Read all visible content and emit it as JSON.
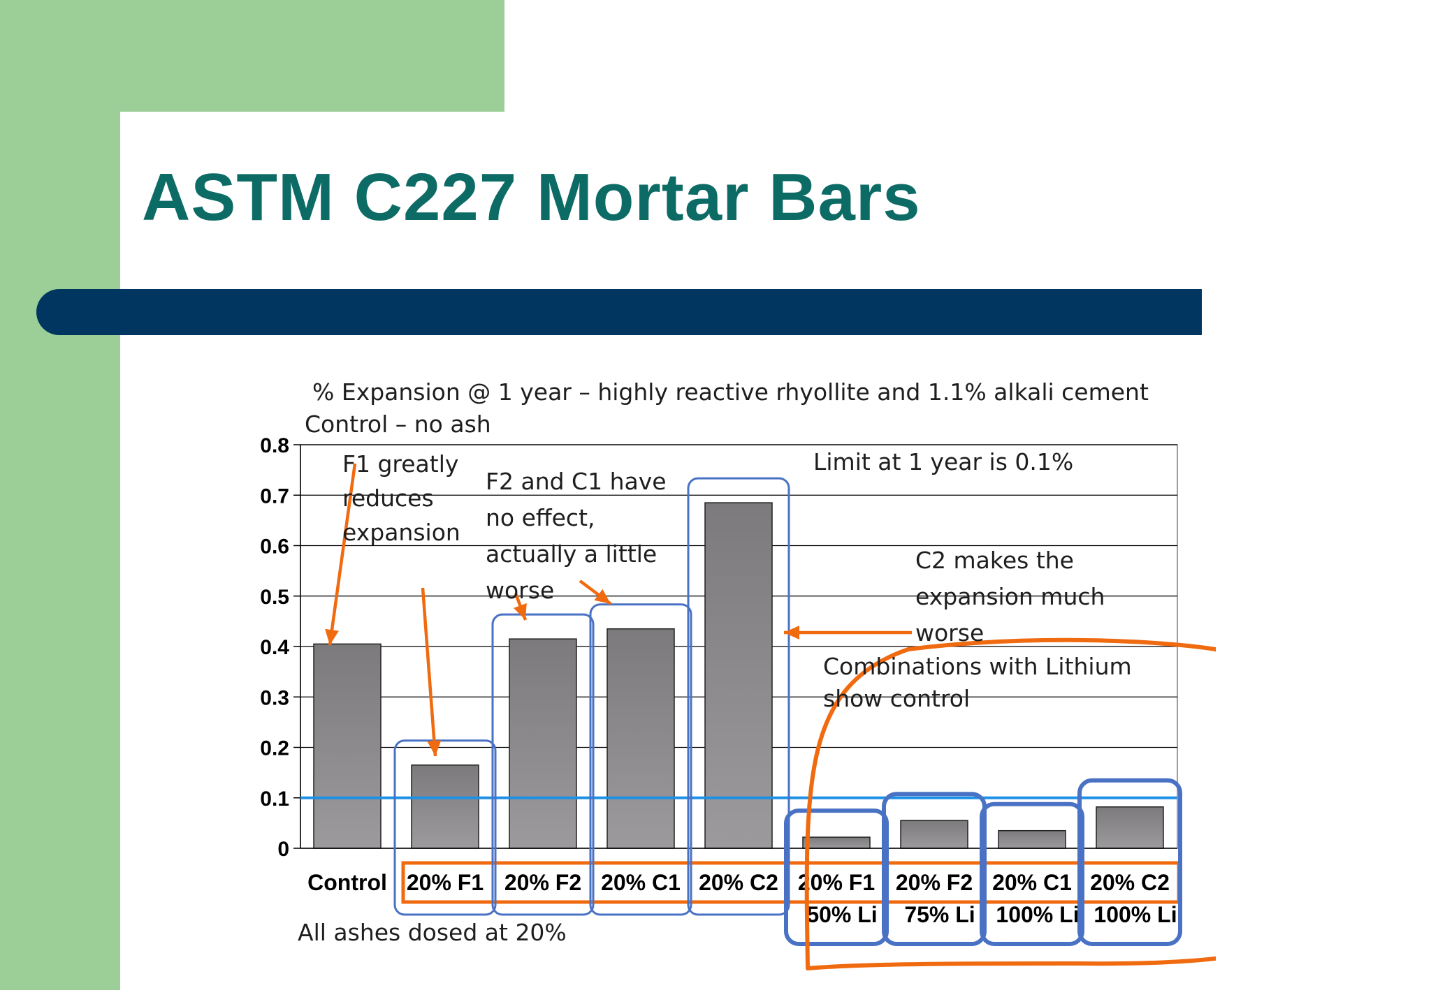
{
  "slide": {
    "title": "ASTM C227 Mortar Bars"
  },
  "colors": {
    "green": "#9ccf98",
    "title": "#0d6b66",
    "band": "#00365f",
    "bar": "#858585",
    "limit_line": "#1e90e6",
    "orange": "#f06a10",
    "blue_box": "#4a72c4"
  },
  "chart_data": {
    "type": "bar",
    "title": "% Expansion @ 1 year – highly reactive rhyollite and 1.1% alkali cement",
    "categories": [
      [
        "Control"
      ],
      [
        "20% F1"
      ],
      [
        "20% F2"
      ],
      [
        "20% C1"
      ],
      [
        "20% C2"
      ],
      [
        "20% F1",
        "50% Li"
      ],
      [
        "20% F2",
        "75% Li"
      ],
      [
        "20% C1",
        "100% Li"
      ],
      [
        "20% C2",
        "100% Li"
      ]
    ],
    "values": [
      0.405,
      0.165,
      0.415,
      0.435,
      0.685,
      0.022,
      0.055,
      0.035,
      0.082
    ],
    "ylim": [
      0,
      0.8
    ],
    "yticks": [
      "0",
      "0.1",
      "0.2",
      "0.3",
      "0.4",
      "0.5",
      "0.6",
      "0.7",
      "0.8"
    ],
    "limit_value": 0.1,
    "grid": true,
    "annotations": {
      "control": "Control – no ash",
      "f1": [
        "F1 greatly",
        "reduces",
        "expansion"
      ],
      "f2c1": [
        "F2 and C1 have",
        "no effect,",
        "actually a little",
        "worse"
      ],
      "limit": "Limit at 1 year is 0.1%",
      "c2": [
        "C2 makes the",
        "expansion much",
        "worse"
      ],
      "lithium": [
        "Combinations with Lithium",
        "show control"
      ],
      "dosage": "All ashes dosed at 20%"
    }
  }
}
